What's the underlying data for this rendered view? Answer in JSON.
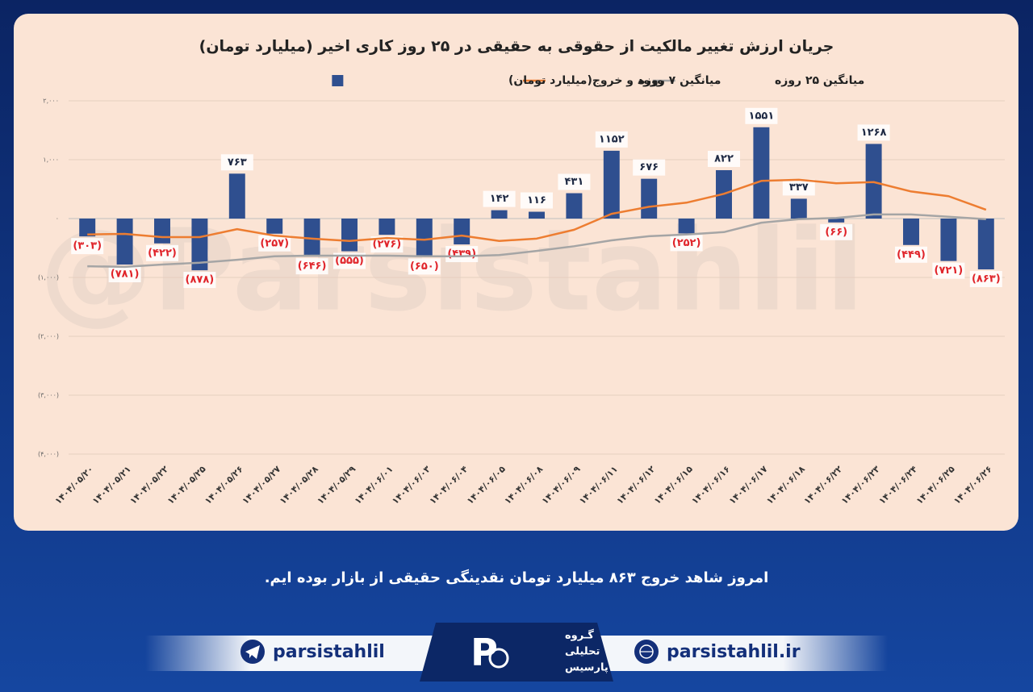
{
  "chart_data": {
    "type": "bar",
    "title": "جریان ارزش تغییر مالکیت از حقوقی به حقیقی در ۲۵ روز کاری اخیر (میلیارد تومان)",
    "categories": [
      "۱۴۰۴/۰۵/۲۰",
      "۱۴۰۴/۰۵/۲۱",
      "۱۴۰۴/۰۵/۲۲",
      "۱۴۰۴/۰۵/۲۵",
      "۱۴۰۴/۰۵/۲۶",
      "۱۴۰۴/۰۵/۲۷",
      "۱۴۰۴/۰۵/۲۸",
      "۱۴۰۴/۰۵/۲۹",
      "۱۴۰۴/۰۶/۰۱",
      "۱۴۰۴/۰۶/۰۳",
      "۱۴۰۴/۰۶/۰۴",
      "۱۴۰۴/۰۶/۰۵",
      "۱۴۰۴/۰۶/۰۸",
      "۱۴۰۴/۰۶/۰۹",
      "۱۴۰۴/۰۶/۱۱",
      "۱۴۰۴/۰۶/۱۲",
      "۱۴۰۴/۰۶/۱۵",
      "۱۴۰۴/۰۶/۱۶",
      "۱۴۰۴/۰۶/۱۷",
      "۱۴۰۴/۰۶/۱۸",
      "۱۴۰۴/۰۶/۲۲",
      "۱۴۰۴/۰۶/۲۳",
      "۱۴۰۴/۰۶/۲۴",
      "۱۴۰۴/۰۶/۲۵",
      "۱۴۰۴/۰۶/۲۶"
    ],
    "series": [
      {
        "name": "ورود و خروج(میلیارد تومان)",
        "type": "bar",
        "color": "#2f4f8f",
        "values": [
          -303,
          -781,
          -422,
          -878,
          763,
          -257,
          -646,
          -555,
          -276,
          -650,
          -439,
          142,
          116,
          431,
          1152,
          676,
          -252,
          822,
          1551,
          337,
          -66,
          1268,
          -449,
          -721,
          -863
        ],
        "value_labels": [
          "(۳۰۳)",
          "(۷۸۱)",
          "(۴۲۲)",
          "(۸۷۸)",
          "۷۶۳",
          "(۲۵۷)",
          "(۶۴۶)",
          "(۵۵۵)",
          "(۲۷۶)",
          "(۶۵۰)",
          "(۴۳۹)",
          "۱۴۲",
          "۱۱۶",
          "۴۳۱",
          "۱۱۵۲",
          "۶۷۶",
          "(۲۵۲)",
          "۸۲۲",
          "۱۵۵۱",
          "۳۳۷",
          "(۶۶)",
          "۱۲۶۸",
          "(۴۴۹)",
          "(۷۲۱)",
          "(۸۶۳)"
        ]
      },
      {
        "name": "میانگین ۷ روزه",
        "type": "line",
        "color": "#ed7d31",
        "values": [
          -270,
          -260,
          -315,
          -315,
          -180,
          -290,
          -340,
          -380,
          -330,
          -360,
          -290,
          -380,
          -340,
          -190,
          80,
          200,
          270,
          420,
          640,
          660,
          600,
          620,
          460,
          380,
          150
        ]
      },
      {
        "name": "میانگین ۲۵ روزه",
        "type": "line",
        "color": "#a5a5a5",
        "values": [
          -810,
          -820,
          -780,
          -750,
          -700,
          -640,
          -630,
          -630,
          -630,
          -640,
          -640,
          -620,
          -550,
          -470,
          -370,
          -300,
          -270,
          -230,
          -70,
          -10,
          10,
          70,
          70,
          30,
          -10
        ]
      }
    ],
    "ylim": [
      -4000,
      2000
    ],
    "yticks": [
      {
        "value": -4000,
        "label": "(۴,۰۰۰)"
      },
      {
        "value": -3000,
        "label": "(۳,۰۰۰)"
      },
      {
        "value": -2000,
        "label": "(۲,۰۰۰)"
      },
      {
        "value": -1000,
        "label": "(۱,۰۰۰)"
      },
      {
        "value": 0,
        "label": "۰"
      },
      {
        "value": 1000,
        "label": "۱,۰۰۰"
      },
      {
        "value": 2000,
        "label": "۲,۰۰۰"
      }
    ],
    "grid": true
  },
  "watermark": "@Parsistahlil",
  "caption": "امروز شاهد خروج ۸۶۳ میلیارد تومان نقدینگی حقیقی از بازار بوده ایم.",
  "footer": {
    "telegram": "parsistahlil",
    "website": "parsistahlil.ir",
    "logo": [
      "گـروه",
      "تحلیلی",
      "پارسیس"
    ]
  }
}
